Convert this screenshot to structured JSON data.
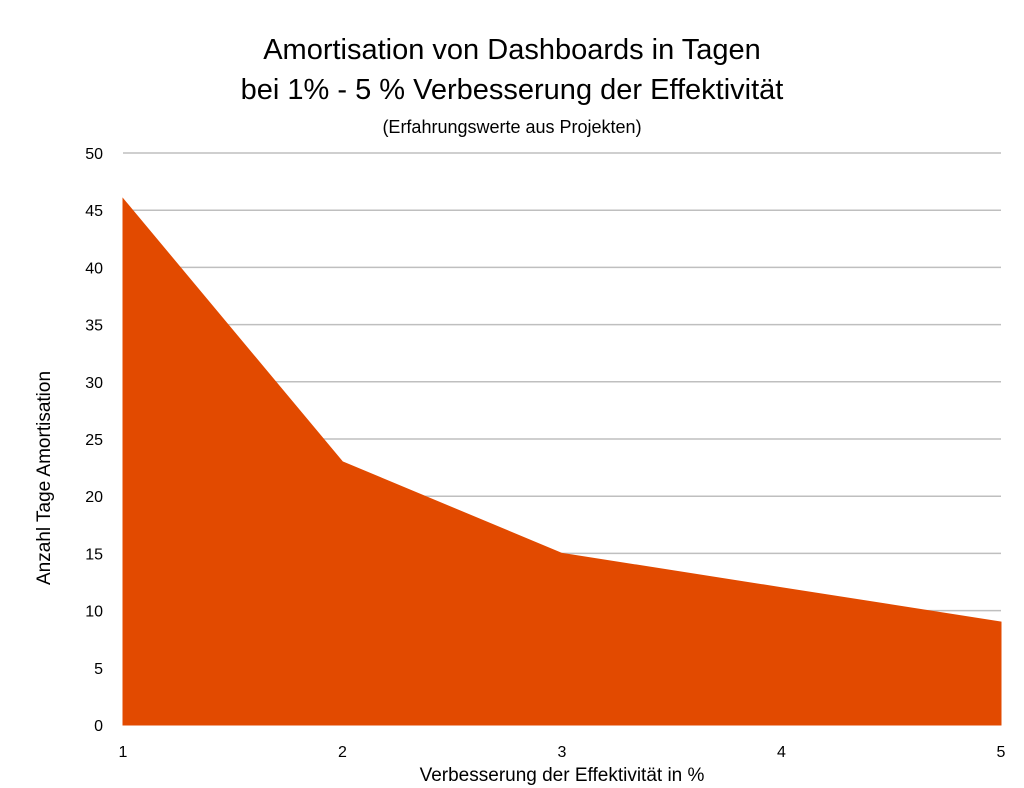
{
  "chart_data": {
    "type": "area",
    "title": "Amortisation von Dashboards in Tagen",
    "subtitle": "bei 1% - 5 % Verbesserung der Effektivität",
    "note": "(Erfahrungswerte aus Projekten)",
    "xlabel": "Verbesserung der Effektivität in %",
    "ylabel": "Anzahl Tage Amortisation",
    "x": [
      1,
      2,
      3,
      4,
      5
    ],
    "series": [
      {
        "values": [
          46,
          23,
          15,
          12,
          9
        ]
      }
    ],
    "ylim": [
      0,
      50
    ],
    "yticks": [
      0,
      5,
      10,
      15,
      20,
      25,
      30,
      35,
      40,
      45,
      50
    ],
    "xticks": [
      1,
      2,
      3,
      4,
      5
    ],
    "grid": true,
    "fill_color": "#e24a00",
    "grid_color": "#bfbfbf"
  }
}
